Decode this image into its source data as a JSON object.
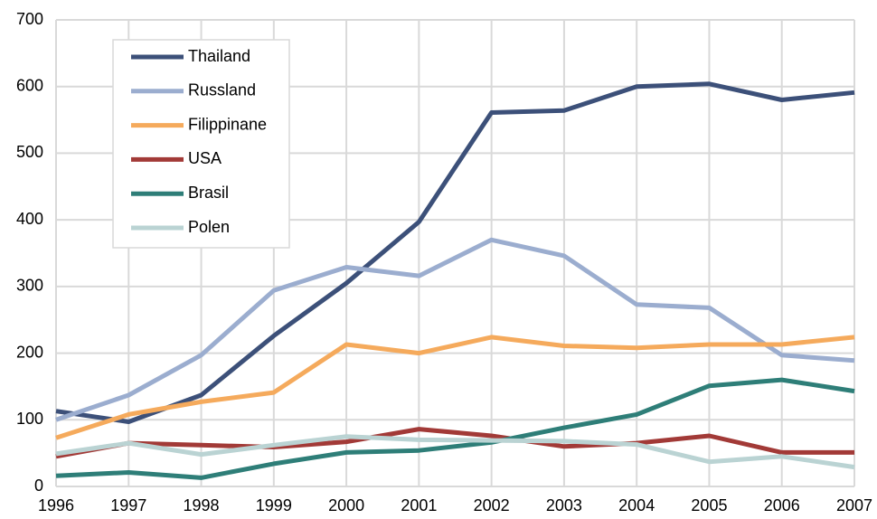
{
  "chart_data": {
    "type": "line",
    "x": [
      1996,
      1997,
      1998,
      1999,
      2000,
      2001,
      2002,
      2003,
      2004,
      2005,
      2006,
      2007
    ],
    "xlim": [
      1996,
      2007
    ],
    "xticks": [
      1996,
      1997,
      1998,
      1999,
      2000,
      2001,
      2002,
      2003,
      2004,
      2005,
      2006,
      2007
    ],
    "ylim": [
      0,
      700
    ],
    "yticks": [
      0,
      100,
      200,
      300,
      400,
      500,
      600,
      700
    ],
    "grid": true,
    "legend": "upper left",
    "series": [
      {
        "name": "Thailand",
        "color": "#3c5079",
        "values": [
          113,
          97,
          137,
          226,
          305,
          397,
          561,
          564,
          600,
          604,
          580,
          591
        ]
      },
      {
        "name": "Russland",
        "color": "#9badcf",
        "values": [
          100,
          137,
          197,
          294,
          329,
          316,
          370,
          346,
          273,
          268,
          197,
          189
        ]
      },
      {
        "name": "Filippinane",
        "color": "#f5aa5c",
        "values": [
          73,
          108,
          127,
          141,
          213,
          200,
          224,
          211,
          208,
          213,
          213,
          224
        ]
      },
      {
        "name": "USA",
        "color": "#a23a37",
        "values": [
          45,
          65,
          62,
          59,
          67,
          86,
          76,
          60,
          65,
          76,
          51,
          51
        ]
      },
      {
        "name": "Brasil",
        "color": "#2e7e78",
        "values": [
          16,
          21,
          13,
          34,
          51,
          54,
          66,
          88,
          108,
          151,
          160,
          143
        ]
      },
      {
        "name": "Polen",
        "color": "#bad3d3",
        "values": [
          49,
          65,
          48,
          62,
          75,
          70,
          69,
          68,
          63,
          37,
          45,
          29
        ]
      }
    ]
  }
}
